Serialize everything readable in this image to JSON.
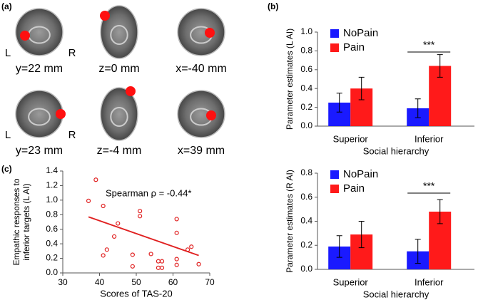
{
  "panel_labels": [
    "(a)",
    "(b)",
    "(c)"
  ],
  "brain_images": [
    {
      "label": "y=22 mm",
      "left": "L",
      "right": "R"
    },
    {
      "label": "z=0 mm"
    },
    {
      "label": "x=-40 mm"
    },
    {
      "label": "y=23 mm",
      "left": "L",
      "right": "R"
    },
    {
      "label": "z=-4 mm"
    },
    {
      "label": "x=39 mm"
    }
  ],
  "chart_data": [
    {
      "type": "bar",
      "y_label": "Parameter estimates (L AI)",
      "x_label": "Social hierarchy",
      "categories": [
        "Superior",
        "Inferior"
      ],
      "series": [
        {
          "name": "NoPain",
          "color": "#1a1aff",
          "values": [
            0.25,
            0.19
          ],
          "errors": [
            0.1,
            0.1
          ]
        },
        {
          "name": "Pain",
          "color": "#ff1a1a",
          "values": [
            0.4,
            0.64
          ],
          "errors": [
            0.12,
            0.12
          ]
        }
      ],
      "ylim": [
        0,
        1
      ],
      "yticks": [
        {
          "value": 0,
          "label": "0.0"
        },
        {
          "value": 0.2,
          "label": "0.2"
        },
        {
          "value": 0.4,
          "label": "0.4"
        },
        {
          "value": 0.6,
          "label": "0.6"
        },
        {
          "value": 0.8,
          "label": "0.8"
        },
        {
          "value": 1,
          "label": "1.0"
        }
      ],
      "annotation": "***",
      "legend": "upper-left"
    },
    {
      "type": "bar",
      "y_label": "Parameter estimates (R AI)",
      "x_label": "Social hierarchy",
      "categories": [
        "Superior",
        "Inferior"
      ],
      "series": [
        {
          "name": "NoPain",
          "color": "#1a1aff",
          "values": [
            0.19,
            0.15
          ],
          "errors": [
            0.09,
            0.1
          ]
        },
        {
          "name": "Pain",
          "color": "#ff1a1a",
          "values": [
            0.29,
            0.48
          ],
          "errors": [
            0.11,
            0.1
          ]
        }
      ],
      "ylim": [
        0,
        0.8
      ],
      "yticks": [
        {
          "value": 0,
          "label": "0.0"
        },
        {
          "value": 0.2,
          "label": "0.2"
        },
        {
          "value": 0.4,
          "label": "0.4"
        },
        {
          "value": 0.6,
          "label": "0.6"
        },
        {
          "value": 0.8,
          "label": "0.8"
        }
      ],
      "annotation": "***",
      "legend": "upper-left"
    },
    {
      "type": "scatter",
      "y_label": [
        "Empathic responses to",
        "inferior targets (L AI)"
      ],
      "x_label": "Scores of TAS-20",
      "annotation": "Spearman ρ = -0.44*",
      "color": "#e02020",
      "x": [
        37,
        39,
        41,
        41,
        42,
        44,
        45,
        49,
        49,
        51,
        51,
        54,
        56,
        56,
        57,
        57,
        61,
        61,
        61,
        61,
        64,
        65,
        67
      ],
      "values": [
        0.99,
        1.28,
        0.92,
        0.24,
        0.32,
        0.5,
        0.68,
        0.25,
        0.09,
        0.85,
        0.78,
        0.26,
        0.16,
        0.07,
        0.07,
        0.16,
        0.74,
        0.55,
        0.19,
        0.11,
        0.32,
        0.36,
        0.12
      ],
      "fit_line": {
        "x": [
          37,
          67
        ],
        "y": [
          0.77,
          0.24
        ]
      },
      "xlim": [
        30,
        70
      ],
      "xticks": [
        30,
        40,
        50,
        60,
        70
      ],
      "ylim": [
        0,
        1.4
      ],
      "yticks": [
        {
          "value": 0,
          "label": "0.0"
        },
        {
          "value": 0.2,
          "label": "0.2"
        },
        {
          "value": 0.4,
          "label": "0.4"
        },
        {
          "value": 0.6,
          "label": "0.6"
        },
        {
          "value": 0.8,
          "label": "0.8"
        },
        {
          "value": 1,
          "label": "1.0"
        },
        {
          "value": 1.2,
          "label": "1.2"
        },
        {
          "value": 1.4,
          "label": "1.4"
        }
      ]
    }
  ]
}
